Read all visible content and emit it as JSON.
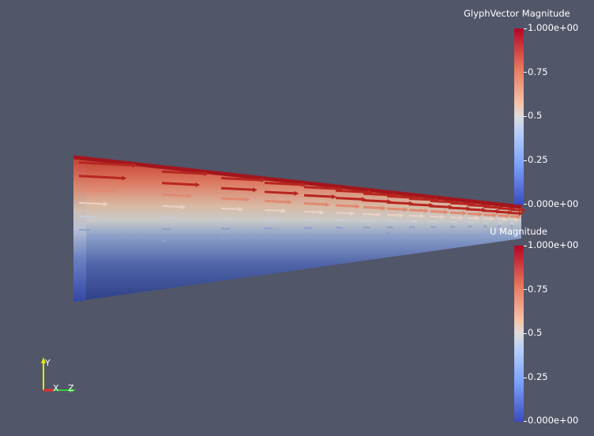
{
  "legends": [
    {
      "title": "GlyphVector Magnitude",
      "ticks": [
        "1.000e+00",
        "0.75",
        "0.5",
        "0.25",
        "0.000e+00"
      ],
      "range": [
        0,
        1
      ]
    },
    {
      "title": "U Magnitude",
      "ticks": [
        "1.000e+00",
        "0.75",
        "0.5",
        "0.25",
        "0.000e+00"
      ],
      "range": [
        0,
        1
      ]
    }
  ],
  "orientation_axes": {
    "y_label": "Y",
    "x_label": "X",
    "z_label": "Z",
    "colors": {
      "y": "#e8e800",
      "x": "#e03030",
      "z": "#30d030"
    }
  },
  "colormap": {
    "high": "#b40426",
    "mid": "#dddcdc",
    "low": "#3b4cc0"
  },
  "background": "#525669"
}
